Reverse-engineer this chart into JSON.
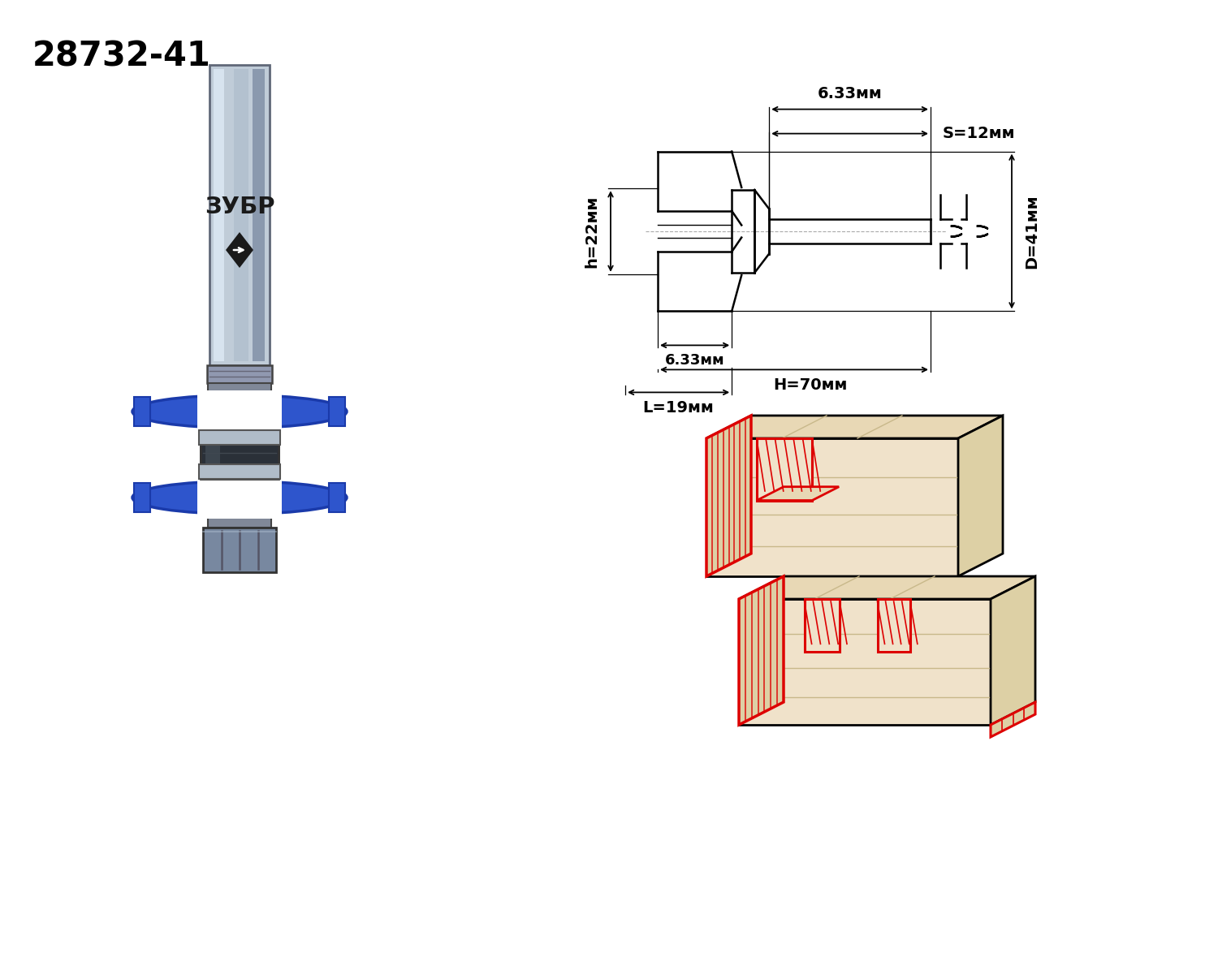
{
  "product_code": "28732-41",
  "bg_color": "#ffffff",
  "dim_labels": {
    "D_label": "D=41мм",
    "S_label": "S=12мм",
    "H_label": "H=70мм",
    "L_label": "L=19мм",
    "h_label": "h=22мм",
    "d_top_label": "6.33мм",
    "d_bot_label": "6.33мм"
  },
  "wood_color": "#f0e2ca",
  "wood_top_color": "#e8d8b5",
  "wood_side_color": "#ddd0a5",
  "cut_color": "#dd0000",
  "blade_color": "#2e55cc",
  "blade_edge_color": "#1a3aaa",
  "shank_color": "#c0ccd8",
  "shank_highlight": "#dce8f4",
  "shank_shadow": "#7888a0",
  "hub_color": "#2a3038",
  "hub_mid_color": "#454e58",
  "nut_color": "#7888a0",
  "collar_color": "#9098b0",
  "bearing_color": "#b0bcc8"
}
